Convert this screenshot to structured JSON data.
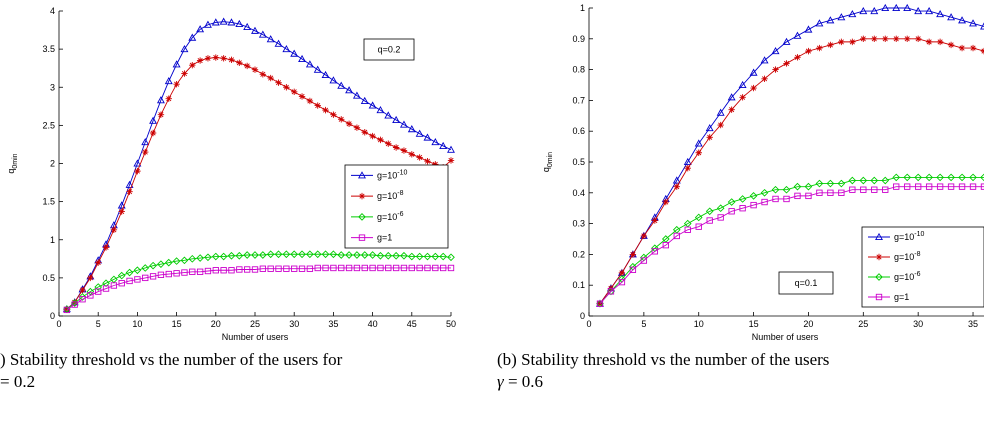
{
  "chart_data": [
    {
      "type": "line",
      "xlabel": "Number of users",
      "ylabel": "q_0min",
      "xlim": [
        0,
        50
      ],
      "ylim": [
        0,
        4
      ],
      "xticks": [
        0,
        5,
        10,
        15,
        20,
        25,
        30,
        35,
        40,
        45,
        50
      ],
      "yticks": [
        0,
        0.5,
        1,
        1.5,
        2,
        2.5,
        3,
        3.5,
        4
      ],
      "xtick_labels": [
        "0",
        "5",
        "10",
        "15",
        "20",
        "25",
        "30",
        "35",
        "40",
        "45",
        "50"
      ],
      "ytick_labels": [
        "0",
        "0.5",
        "1",
        "1.5",
        "2",
        "2.5",
        "3",
        "3.5",
        "4"
      ],
      "annotation": "q=0.2",
      "legend_position": "center-right",
      "x": [
        1,
        2,
        3,
        4,
        5,
        6,
        7,
        8,
        9,
        10,
        11,
        12,
        13,
        14,
        15,
        16,
        17,
        18,
        19,
        20,
        21,
        22,
        23,
        24,
        25,
        26,
        27,
        28,
        29,
        30,
        31,
        32,
        33,
        34,
        35,
        36,
        37,
        38,
        39,
        40,
        41,
        42,
        43,
        44,
        45,
        46,
        47,
        48,
        49,
        50
      ],
      "series": [
        {
          "name": "g=10-10",
          "label_base": "g=10",
          "label_exp": "-10",
          "color": "#0000cc",
          "marker": "triangle",
          "values": [
            0.09,
            0.18,
            0.35,
            0.52,
            0.73,
            0.94,
            1.19,
            1.45,
            1.72,
            2.0,
            2.28,
            2.56,
            2.83,
            3.08,
            3.3,
            3.5,
            3.65,
            3.76,
            3.82,
            3.85,
            3.86,
            3.85,
            3.83,
            3.79,
            3.74,
            3.69,
            3.63,
            3.57,
            3.5,
            3.44,
            3.37,
            3.3,
            3.23,
            3.16,
            3.09,
            3.02,
            2.96,
            2.89,
            2.82,
            2.76,
            2.7,
            2.63,
            2.57,
            2.51,
            2.45,
            2.39,
            2.34,
            2.28,
            2.23,
            2.18
          ]
        },
        {
          "name": "g=10-8",
          "label_base": "g=10",
          "label_exp": "-8",
          "color": "#cc0000",
          "marker": "star",
          "values": [
            0.09,
            0.18,
            0.34,
            0.5,
            0.7,
            0.9,
            1.13,
            1.37,
            1.63,
            1.9,
            2.15,
            2.4,
            2.64,
            2.85,
            3.04,
            3.18,
            3.29,
            3.35,
            3.38,
            3.39,
            3.38,
            3.36,
            3.32,
            3.28,
            3.23,
            3.17,
            3.12,
            3.06,
            3.0,
            2.94,
            2.88,
            2.82,
            2.76,
            2.7,
            2.64,
            2.58,
            2.52,
            2.47,
            2.41,
            2.36,
            2.31,
            2.26,
            2.21,
            2.17,
            2.12,
            2.08,
            2.03,
            1.99,
            1.95,
            2.04
          ]
        },
        {
          "name": "g=10-6",
          "label_base": "g=10",
          "label_exp": "-6",
          "color": "#00cc00",
          "marker": "diamond",
          "values": [
            0.09,
            0.17,
            0.25,
            0.32,
            0.38,
            0.43,
            0.48,
            0.53,
            0.57,
            0.6,
            0.63,
            0.66,
            0.68,
            0.7,
            0.72,
            0.73,
            0.75,
            0.76,
            0.77,
            0.78,
            0.78,
            0.79,
            0.79,
            0.8,
            0.8,
            0.8,
            0.81,
            0.81,
            0.81,
            0.81,
            0.81,
            0.81,
            0.81,
            0.81,
            0.81,
            0.8,
            0.8,
            0.8,
            0.8,
            0.8,
            0.79,
            0.79,
            0.79,
            0.79,
            0.78,
            0.78,
            0.78,
            0.78,
            0.78,
            0.77
          ]
        },
        {
          "name": "g=1",
          "label_base": "g=1",
          "label_exp": "",
          "color": "#cc00cc",
          "marker": "square",
          "values": [
            0.08,
            0.15,
            0.22,
            0.27,
            0.32,
            0.36,
            0.4,
            0.43,
            0.46,
            0.48,
            0.5,
            0.52,
            0.54,
            0.55,
            0.56,
            0.57,
            0.58,
            0.58,
            0.59,
            0.6,
            0.6,
            0.6,
            0.61,
            0.61,
            0.61,
            0.62,
            0.62,
            0.62,
            0.62,
            0.62,
            0.62,
            0.62,
            0.63,
            0.63,
            0.63,
            0.63,
            0.63,
            0.63,
            0.63,
            0.63,
            0.63,
            0.63,
            0.63,
            0.63,
            0.63,
            0.63,
            0.63,
            0.63,
            0.63,
            0.63
          ]
        }
      ]
    },
    {
      "type": "line",
      "xlabel": "Number of users",
      "ylabel": "q_0min",
      "xlim": [
        0,
        36
      ],
      "ylim": [
        0,
        1
      ],
      "xticks": [
        0,
        5,
        10,
        15,
        20,
        25,
        30,
        35
      ],
      "yticks": [
        0,
        0.1,
        0.2,
        0.3,
        0.4,
        0.5,
        0.6,
        0.7,
        0.8,
        0.9,
        1
      ],
      "xtick_labels": [
        "0",
        "5",
        "10",
        "15",
        "20",
        "25",
        "30",
        "35"
      ],
      "ytick_labels": [
        "0",
        "0.1",
        "0.2",
        "0.3",
        "0.4",
        "0.5",
        "0.6",
        "0.7",
        "0.8",
        "0.9",
        "1"
      ],
      "annotation": "q=0.1",
      "legend_position": "bottom-right",
      "x": [
        1,
        2,
        3,
        4,
        5,
        6,
        7,
        8,
        9,
        10,
        11,
        12,
        13,
        14,
        15,
        16,
        17,
        18,
        19,
        20,
        21,
        22,
        23,
        24,
        25,
        26,
        27,
        28,
        29,
        30,
        31,
        32,
        33,
        34,
        35,
        36
      ],
      "series": [
        {
          "name": "g=10-10",
          "label_base": "g=10",
          "label_exp": "-10",
          "color": "#0000cc",
          "marker": "triangle",
          "values": [
            0.04,
            0.09,
            0.14,
            0.2,
            0.26,
            0.32,
            0.38,
            0.44,
            0.5,
            0.56,
            0.61,
            0.66,
            0.71,
            0.75,
            0.79,
            0.83,
            0.86,
            0.89,
            0.91,
            0.93,
            0.95,
            0.96,
            0.97,
            0.98,
            0.99,
            0.99,
            1.0,
            1.0,
            1.0,
            0.99,
            0.99,
            0.98,
            0.97,
            0.96,
            0.95,
            0.94
          ]
        },
        {
          "name": "g=10-8",
          "label_base": "g=10",
          "label_exp": "-8",
          "color": "#cc0000",
          "marker": "star",
          "values": [
            0.04,
            0.09,
            0.14,
            0.2,
            0.26,
            0.31,
            0.37,
            0.42,
            0.48,
            0.53,
            0.58,
            0.62,
            0.67,
            0.71,
            0.74,
            0.77,
            0.8,
            0.82,
            0.84,
            0.86,
            0.87,
            0.88,
            0.89,
            0.89,
            0.9,
            0.9,
            0.9,
            0.9,
            0.9,
            0.9,
            0.89,
            0.89,
            0.88,
            0.87,
            0.87,
            0.86
          ]
        },
        {
          "name": "g=10-6",
          "label_base": "g=10",
          "label_exp": "-6",
          "color": "#00cc00",
          "marker": "diamond",
          "values": [
            0.04,
            0.08,
            0.12,
            0.16,
            0.19,
            0.22,
            0.25,
            0.28,
            0.3,
            0.32,
            0.34,
            0.35,
            0.37,
            0.38,
            0.39,
            0.4,
            0.41,
            0.41,
            0.42,
            0.42,
            0.43,
            0.43,
            0.43,
            0.44,
            0.44,
            0.44,
            0.44,
            0.45,
            0.45,
            0.45,
            0.45,
            0.45,
            0.45,
            0.45,
            0.45,
            0.45
          ]
        },
        {
          "name": "g=1",
          "label_base": "g=1",
          "label_exp": "",
          "color": "#cc00cc",
          "marker": "square",
          "values": [
            0.04,
            0.08,
            0.11,
            0.15,
            0.18,
            0.21,
            0.23,
            0.26,
            0.28,
            0.29,
            0.31,
            0.32,
            0.34,
            0.35,
            0.36,
            0.37,
            0.38,
            0.38,
            0.39,
            0.39,
            0.4,
            0.4,
            0.4,
            0.41,
            0.41,
            0.41,
            0.41,
            0.42,
            0.42,
            0.42,
            0.42,
            0.42,
            0.42,
            0.42,
            0.42,
            0.42
          ]
        }
      ]
    }
  ],
  "captions": {
    "a_line1": ") Stability threshold vs the number of the users for",
    "a_line2": "= 0.2",
    "b_line1": "(b) Stability threshold vs the number of the users",
    "b_line2_symbol": "γ",
    "b_line2_value": "= 0.6"
  }
}
